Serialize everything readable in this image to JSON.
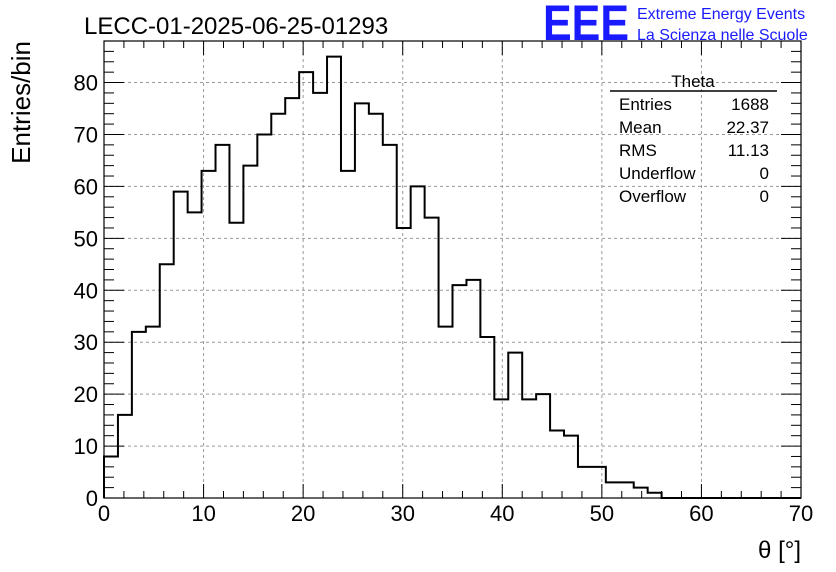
{
  "chart_data": {
    "type": "histogram",
    "title": "LECC-01-2025-06-25-01293",
    "xlabel": "θ [°]",
    "ylabel": "Entries/bin",
    "xlim": [
      0,
      70
    ],
    "ylim": [
      0,
      88
    ],
    "grid": true,
    "xticks": [
      0,
      10,
      20,
      30,
      40,
      50,
      60,
      70
    ],
    "yticks": [
      0,
      10,
      20,
      30,
      40,
      50,
      60,
      70,
      80
    ],
    "bin_width": 1.4,
    "bin_start": 0,
    "series": [
      {
        "values": [
          8,
          16,
          32,
          33,
          45,
          59,
          55,
          63,
          68,
          53,
          64,
          70,
          74,
          77,
          82,
          78,
          85,
          63,
          76,
          74,
          68,
          52,
          60,
          54,
          33,
          41,
          42,
          31,
          19,
          28,
          19,
          20,
          13,
          12,
          6,
          6,
          3,
          3,
          2,
          1,
          0,
          0,
          0,
          0,
          0,
          0,
          0,
          0,
          0,
          0
        ]
      }
    ]
  },
  "stats_box": {
    "title": "Theta",
    "rows": [
      {
        "label": "Entries",
        "value": "1688"
      },
      {
        "label": "Mean",
        "value": "22.37"
      },
      {
        "label": "RMS",
        "value": "11.13"
      },
      {
        "label": "Underflow",
        "value": "0"
      },
      {
        "label": "Overflow",
        "value": "0"
      }
    ]
  },
  "logo": {
    "text": "EEE",
    "line1": "Extreme Energy Events",
    "line2": "La Scienza nelle Scuole",
    "color": "#1a1aff"
  }
}
